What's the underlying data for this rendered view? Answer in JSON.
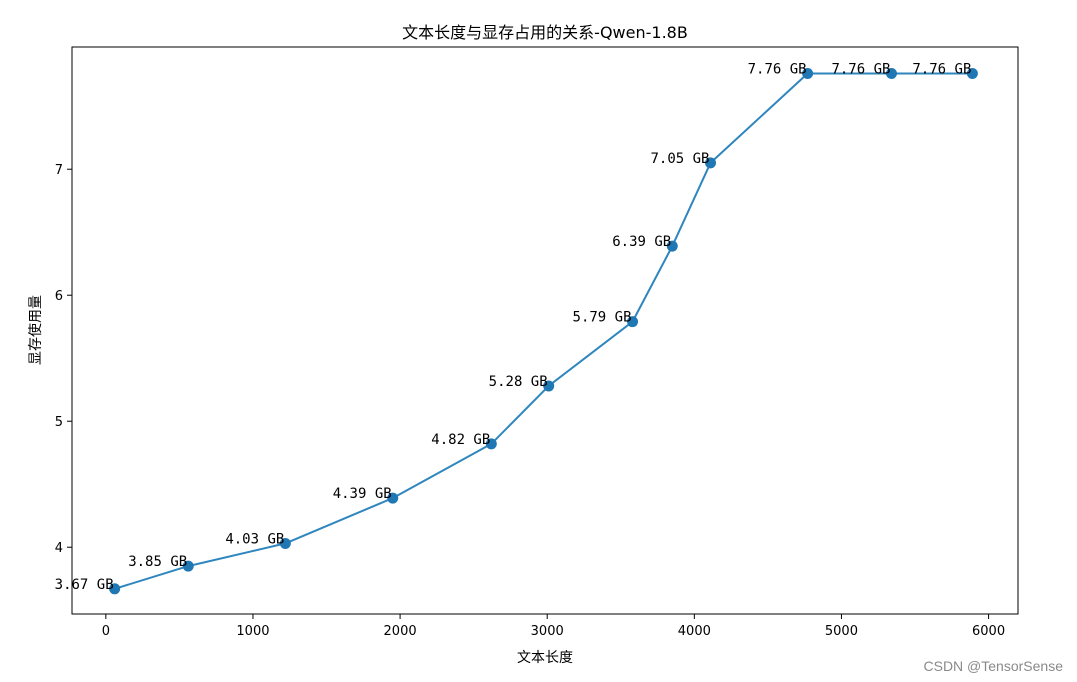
{
  "chart_data": {
    "type": "line",
    "title": "文本长度与显存占用的关系-Qwen-1.8B",
    "xlabel": "文本长度",
    "ylabel": "显存使用量",
    "xlim": [
      -230,
      6200
    ],
    "ylim": [
      3.47,
      7.97
    ],
    "xticks": [
      0,
      1000,
      2000,
      3000,
      4000,
      5000,
      6000
    ],
    "yticks": [
      4,
      5,
      6,
      7
    ],
    "grid": false,
    "legend": "none",
    "series": [
      {
        "x": [
          60,
          560,
          1220,
          1950,
          2620,
          3010,
          3580,
          3850,
          4110,
          4770,
          5340,
          5890
        ],
        "y": [
          3.67,
          3.85,
          4.03,
          4.39,
          4.82,
          5.28,
          5.79,
          6.39,
          7.05,
          7.76,
          7.76,
          7.76
        ],
        "labels": [
          "3.67 GB",
          "3.85 GB",
          "4.03 GB",
          "4.39 GB",
          "4.82 GB",
          "5.28 GB",
          "5.79 GB",
          "6.39 GB",
          "7.05 GB",
          "7.76 GB",
          "7.76 GB",
          "7.76 GB"
        ]
      }
    ],
    "colors": {
      "line": "#2f86be",
      "marker": "#1f77b4"
    }
  },
  "watermark": "CSDN @TensorSense"
}
